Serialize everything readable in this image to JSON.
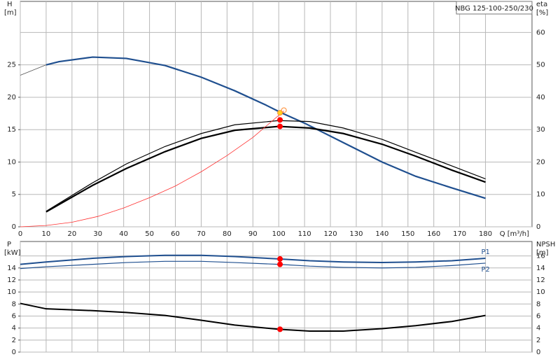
{
  "chart_data": [
    {
      "type": "line",
      "annotation": "NBG 125-100-250/230",
      "x_label": "Q [m³/h]",
      "y_label": "H",
      "y_unit": "[m]",
      "y2_label": "eta",
      "y2_unit": "[%]",
      "xlim": [
        0,
        198
      ],
      "xticks": [
        0,
        10,
        20,
        30,
        40,
        50,
        60,
        70,
        80,
        90,
        100,
        110,
        120,
        130,
        140,
        150,
        160,
        170,
        180
      ],
      "ylim": [
        0,
        34.8
      ],
      "yticks": [
        0,
        5,
        10,
        15,
        20,
        25
      ],
      "y2lim": [
        0,
        69.6
      ],
      "y2ticks": [
        0,
        10,
        20,
        30,
        40,
        50,
        60
      ],
      "grid": true,
      "show_xtick_labels": true,
      "series": [
        {
          "color": "#555555",
          "width": 0.8,
          "x": [
            0,
            10
          ],
          "values": [
            23.4,
            25
          ]
        },
        {
          "color": "#1f4f8f",
          "width": 2.2,
          "x": [
            10,
            15,
            28,
            41,
            56,
            70,
            83,
            95,
            101,
            110,
            125,
            140,
            153,
            167,
            180
          ],
          "values": [
            25,
            25.5,
            26.2,
            26,
            24.9,
            23.1,
            21,
            18.8,
            17.6,
            16,
            13,
            10,
            7.8,
            6,
            4.4
          ]
        },
        {
          "color": "#000000",
          "width": 1.2,
          "axis": "y2",
          "x": [
            10,
            28,
            41,
            56,
            70,
            83,
            100,
            112,
            125,
            140,
            153,
            167,
            180
          ],
          "values": [
            4.8,
            13.6,
            19.4,
            24.8,
            28.8,
            31.5,
            32.8,
            32.5,
            30.5,
            27,
            23,
            18.8,
            14.8
          ]
        },
        {
          "color": "#000000",
          "width": 2.2,
          "axis": "y2",
          "x": [
            10,
            28,
            41,
            56,
            70,
            83,
            100,
            112,
            125,
            140,
            153,
            167,
            180
          ],
          "values": [
            4.6,
            12.8,
            18,
            23.2,
            27.3,
            29.8,
            31,
            30.5,
            28.8,
            25.5,
            21.8,
            17.5,
            13.8
          ]
        },
        {
          "color": "#ff3030",
          "width": 0.8,
          "x": [
            0,
            10,
            20,
            30,
            40,
            50,
            60,
            70,
            80,
            90,
            100,
            102
          ],
          "values": [
            0,
            0.2,
            0.7,
            1.6,
            2.9,
            4.5,
            6.3,
            8.5,
            11,
            13.8,
            17.2,
            17.9
          ]
        }
      ],
      "points": [
        {
          "x": 102,
          "y": 18,
          "color": "#ff8c30",
          "hollow": true
        },
        {
          "x": 100.5,
          "y": 17.6,
          "color": "#ffd21f"
        },
        {
          "x": 100.5,
          "y": 33,
          "color": "#ff0000",
          "axis": "y2"
        },
        {
          "x": 100.5,
          "y": 31,
          "color": "#ff0000",
          "axis": "y2"
        }
      ]
    },
    {
      "type": "line",
      "y_label": "P",
      "y_unit": "[kW]",
      "y2_label": "NPSH",
      "y2_unit": "[m]",
      "xlim": [
        0,
        198
      ],
      "xticks": [
        0,
        10,
        20,
        30,
        40,
        50,
        60,
        70,
        80,
        90,
        100,
        110,
        120,
        130,
        140,
        150,
        160,
        170,
        180
      ],
      "ylim": [
        0,
        18.4
      ],
      "yticks": [
        0,
        2,
        4,
        6,
        8,
        10,
        12,
        14
      ],
      "y2lim": [
        0,
        18.4
      ],
      "y2ticks": [
        0,
        2,
        4,
        6,
        8,
        10,
        12,
        14,
        16
      ],
      "grid": true,
      "show_xtick_labels": false,
      "series": [
        {
          "name": "P1",
          "color": "#1f4f8f",
          "width": 2,
          "x": [
            0,
            10,
            28,
            41,
            56,
            70,
            83,
            100,
            112,
            125,
            140,
            153,
            167,
            180
          ],
          "values": [
            14.6,
            15,
            15.6,
            15.9,
            16.1,
            16.1,
            15.9,
            15.5,
            15.2,
            15,
            14.9,
            15,
            15.2,
            15.6
          ]
        },
        {
          "name": "P2",
          "color": "#1f4f8f",
          "width": 1.2,
          "x": [
            0,
            10,
            28,
            41,
            56,
            70,
            83,
            100,
            112,
            125,
            140,
            153,
            167,
            180
          ],
          "values": [
            13.9,
            14.2,
            14.6,
            14.9,
            15.1,
            15.1,
            14.9,
            14.6,
            14.3,
            14.1,
            14,
            14.1,
            14.4,
            14.8
          ]
        },
        {
          "color": "#000000",
          "width": 2,
          "axis": "y2",
          "x": [
            0,
            10,
            28,
            41,
            56,
            70,
            83,
            100,
            112,
            125,
            140,
            153,
            167,
            180
          ],
          "values": [
            8.1,
            7.2,
            6.9,
            6.6,
            6.1,
            5.3,
            4.5,
            3.8,
            3.5,
            3.5,
            3.9,
            4.4,
            5.1,
            6.1
          ]
        }
      ],
      "points": [
        {
          "x": 100.5,
          "y": 15.5,
          "color": "#ff0000"
        },
        {
          "x": 100.5,
          "y": 14.6,
          "color": "#ff0000"
        },
        {
          "x": 100.5,
          "y": 3.8,
          "color": "#ff0000",
          "axis": "y2"
        }
      ]
    }
  ]
}
